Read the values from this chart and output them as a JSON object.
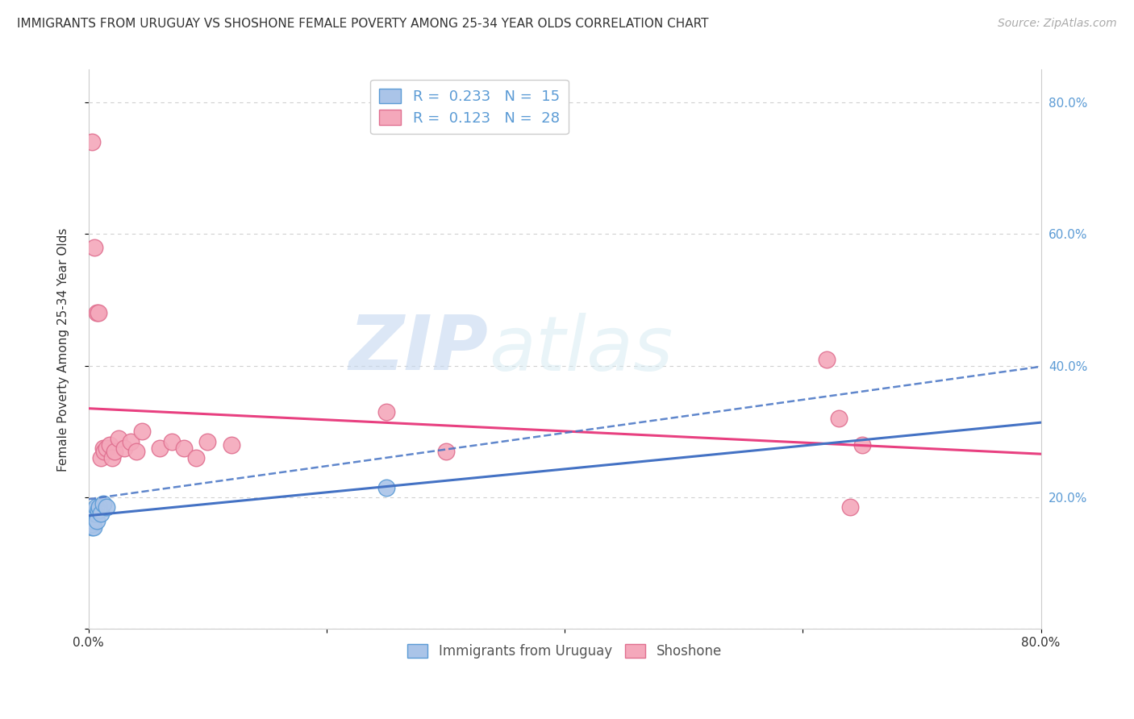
{
  "title": "IMMIGRANTS FROM URUGUAY VS SHOSHONE FEMALE POVERTY AMONG 25-34 YEAR OLDS CORRELATION CHART",
  "source": "Source: ZipAtlas.com",
  "ylabel": "Female Poverty Among 25-34 Year Olds",
  "xlim": [
    0.0,
    0.8
  ],
  "ylim": [
    0.0,
    0.85
  ],
  "xticks": [
    0.0,
    0.2,
    0.4,
    0.6,
    0.8
  ],
  "yticks": [
    0.0,
    0.2,
    0.4,
    0.6,
    0.8
  ],
  "xticklabels": [
    "0.0%",
    "",
    "",
    "",
    "80.0%"
  ],
  "yticklabels_right": [
    "",
    "20.0%",
    "40.0%",
    "60.0%",
    "80.0%"
  ],
  "grid_color": "#d0d0d0",
  "background_color": "#ffffff",
  "watermark_zip": "ZIP",
  "watermark_atlas": "atlas",
  "legend_R1": "0.233",
  "legend_N1": "15",
  "legend_R2": "0.123",
  "legend_N2": "28",
  "series1_color": "#aac4e8",
  "series2_color": "#f4a8bb",
  "series1_edge": "#5b9bd5",
  "series2_edge": "#e07090",
  "line1_color": "#4472c4",
  "line2_color": "#e84080",
  "line1_style": "-",
  "line2_style": "-",
  "uruguay_x": [
    0.003,
    0.003,
    0.003,
    0.004,
    0.004,
    0.005,
    0.006,
    0.006,
    0.007,
    0.008,
    0.009,
    0.01,
    0.012,
    0.015,
    0.25
  ],
  "uruguay_y": [
    0.155,
    0.16,
    0.165,
    0.155,
    0.18,
    0.175,
    0.175,
    0.185,
    0.165,
    0.18,
    0.185,
    0.175,
    0.19,
    0.185,
    0.215
  ],
  "shoshone_x": [
    0.003,
    0.005,
    0.007,
    0.008,
    0.01,
    0.012,
    0.013,
    0.015,
    0.018,
    0.02,
    0.022,
    0.025,
    0.03,
    0.035,
    0.04,
    0.045,
    0.06,
    0.07,
    0.08,
    0.09,
    0.1,
    0.12,
    0.25,
    0.3,
    0.62,
    0.63,
    0.64,
    0.65
  ],
  "shoshone_y": [
    0.74,
    0.58,
    0.48,
    0.48,
    0.26,
    0.275,
    0.27,
    0.275,
    0.28,
    0.26,
    0.27,
    0.29,
    0.275,
    0.285,
    0.27,
    0.3,
    0.275,
    0.285,
    0.275,
    0.26,
    0.285,
    0.28,
    0.33,
    0.27,
    0.41,
    0.32,
    0.185,
    0.28
  ],
  "title_fontsize": 11,
  "source_fontsize": 10,
  "tick_fontsize": 11,
  "ylabel_fontsize": 11,
  "legend_fontsize": 13,
  "marker_size": 220
}
